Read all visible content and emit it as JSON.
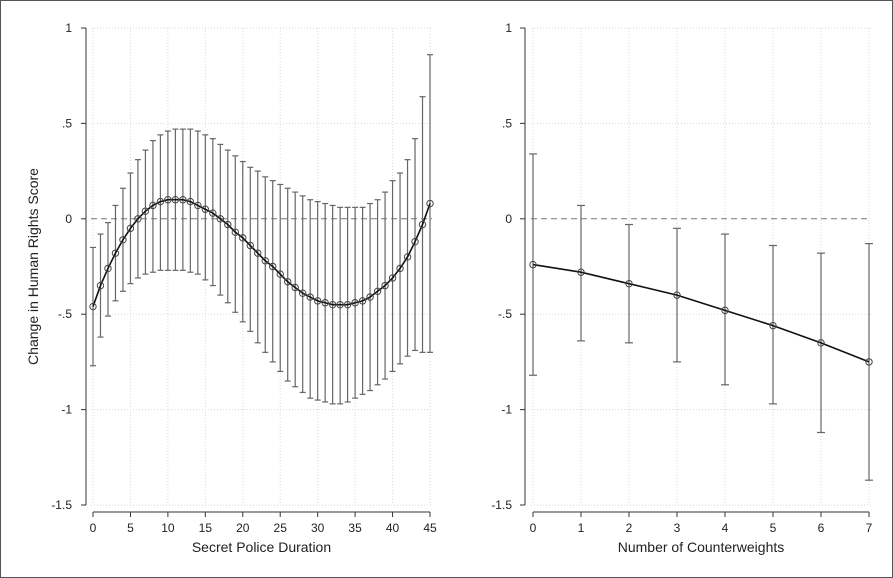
{
  "chart_data": [
    {
      "type": "line",
      "title": "",
      "xlabel": "Secret Police Duration",
      "ylabel": "Change in Human Rights Score",
      "xlim": [
        0,
        45
      ],
      "ylim": [
        -1.5,
        1
      ],
      "xticks": [
        0,
        5,
        10,
        15,
        20,
        25,
        30,
        35,
        40,
        45
      ],
      "xtick_labels": [
        "0",
        "5",
        "10",
        "15",
        "20",
        "25",
        "30",
        "35",
        "40",
        "45"
      ],
      "yticks": [
        1,
        0.5,
        0,
        -0.5,
        -1,
        -1.5
      ],
      "ytick_labels": [
        "1",
        ".5",
        "0",
        "-.5",
        "-1",
        "-1.5"
      ],
      "reference_line_y": 0,
      "grid": true,
      "series": [
        {
          "x": [
            0,
            1,
            2,
            3,
            4,
            5,
            6,
            7,
            8,
            9,
            10,
            11,
            12,
            13,
            14,
            15,
            16,
            17,
            18,
            19,
            20,
            21,
            22,
            23,
            24,
            25,
            26,
            27,
            28,
            29,
            30,
            31,
            32,
            33,
            34,
            35,
            36,
            37,
            38,
            39,
            40,
            41,
            42,
            43,
            44,
            45
          ],
          "values": [
            -0.46,
            -0.35,
            -0.26,
            -0.18,
            -0.11,
            -0.05,
            0.0,
            0.04,
            0.07,
            0.09,
            0.1,
            0.1,
            0.1,
            0.09,
            0.07,
            0.05,
            0.03,
            0.0,
            -0.03,
            -0.07,
            -0.1,
            -0.14,
            -0.18,
            -0.22,
            -0.25,
            -0.29,
            -0.33,
            -0.36,
            -0.39,
            -0.41,
            -0.43,
            -0.44,
            -0.45,
            -0.45,
            -0.45,
            -0.44,
            -0.43,
            -0.41,
            -0.38,
            -0.35,
            -0.31,
            -0.26,
            -0.2,
            -0.12,
            -0.03,
            0.08
          ],
          "ci_upper": [
            -0.15,
            -0.08,
            -0.02,
            0.07,
            0.16,
            0.24,
            0.31,
            0.36,
            0.41,
            0.44,
            0.46,
            0.47,
            0.47,
            0.47,
            0.46,
            0.44,
            0.42,
            0.39,
            0.36,
            0.33,
            0.3,
            0.27,
            0.25,
            0.22,
            0.2,
            0.18,
            0.16,
            0.14,
            0.12,
            0.1,
            0.09,
            0.08,
            0.07,
            0.06,
            0.06,
            0.06,
            0.06,
            0.08,
            0.1,
            0.14,
            0.2,
            0.24,
            0.31,
            0.42,
            0.64,
            0.86
          ],
          "ci_lower": [
            -0.77,
            -0.62,
            -0.51,
            -0.43,
            -0.38,
            -0.34,
            -0.31,
            -0.29,
            -0.28,
            -0.27,
            -0.27,
            -0.27,
            -0.27,
            -0.28,
            -0.29,
            -0.32,
            -0.35,
            -0.4,
            -0.44,
            -0.49,
            -0.54,
            -0.59,
            -0.65,
            -0.7,
            -0.75,
            -0.8,
            -0.85,
            -0.88,
            -0.91,
            -0.94,
            -0.95,
            -0.96,
            -0.97,
            -0.97,
            -0.96,
            -0.94,
            -0.92,
            -0.9,
            -0.87,
            -0.84,
            -0.8,
            -0.76,
            -0.72,
            -0.69,
            -0.7,
            -0.7
          ]
        }
      ]
    },
    {
      "type": "line",
      "title": "",
      "xlabel": "Number of Counterweights",
      "ylabel": "",
      "xlim": [
        0,
        7
      ],
      "ylim": [
        -1.5,
        1
      ],
      "xticks": [
        0,
        1,
        2,
        3,
        4,
        5,
        6,
        7
      ],
      "xtick_labels": [
        "0",
        "1",
        "2",
        "3",
        "4",
        "5",
        "6",
        "7"
      ],
      "yticks": [
        1,
        0.5,
        0,
        -0.5,
        -1,
        -1.5
      ],
      "ytick_labels": [
        "1",
        ".5",
        "0",
        "-.5",
        "-1",
        "-1.5"
      ],
      "reference_line_y": 0,
      "grid": true,
      "series": [
        {
          "x": [
            0,
            1,
            2,
            3,
            4,
            5,
            6,
            7
          ],
          "values": [
            -0.24,
            -0.28,
            -0.34,
            -0.4,
            -0.48,
            -0.56,
            -0.65,
            -0.75
          ],
          "ci_upper": [
            0.34,
            0.07,
            -0.03,
            -0.05,
            -0.08,
            -0.14,
            -0.18,
            -0.13
          ],
          "ci_lower": [
            -0.82,
            -0.64,
            -0.65,
            -0.75,
            -0.87,
            -0.97,
            -1.12,
            -1.37
          ]
        }
      ]
    }
  ]
}
